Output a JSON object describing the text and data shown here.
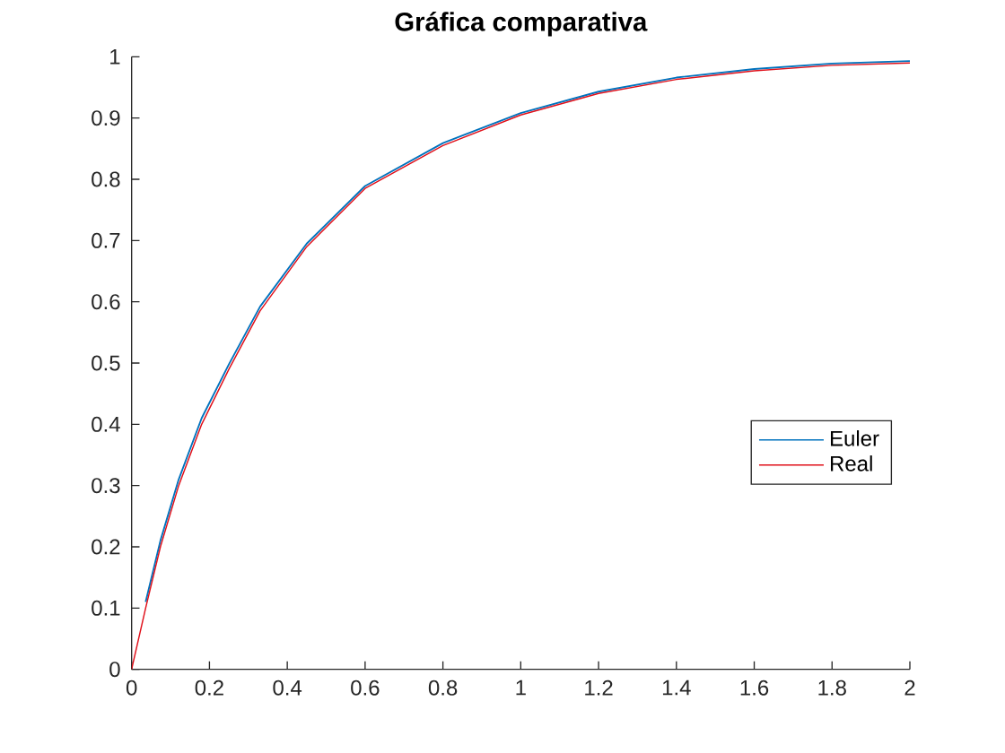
{
  "chart_data": {
    "type": "line",
    "title": "Gráfica comparativa",
    "x": [
      0,
      0.036,
      0.074,
      0.121,
      0.18,
      0.25,
      0.33,
      0.45,
      0.6,
      0.8,
      1,
      1.2,
      1.4,
      1.6,
      1.8,
      2
    ],
    "series": [
      {
        "name": "Euler",
        "color": "#0072bd",
        "values": [
          null,
          0.11,
          0.21,
          0.31,
          0.41,
          0.498,
          0.592,
          0.695,
          0.789,
          0.859,
          0.908,
          0.943,
          0.966,
          0.98,
          0.989,
          0.993
        ]
      },
      {
        "name": "Real",
        "color": "#e0101a",
        "values": [
          0,
          0.1,
          0.2,
          0.3,
          0.4,
          0.49,
          0.585,
          0.69,
          0.785,
          0.855,
          0.905,
          0.94,
          0.963,
          0.977,
          0.986,
          0.99
        ]
      }
    ],
    "xlim": [
      0,
      2
    ],
    "ylim": [
      0,
      1
    ],
    "xticks": [
      0,
      0.2,
      0.4,
      0.6,
      0.8,
      1,
      1.2,
      1.4,
      1.6,
      1.8,
      2
    ],
    "yticks": [
      0,
      0.1,
      0.2,
      0.3,
      0.4,
      0.5,
      0.6,
      0.7,
      0.8,
      0.9,
      1
    ],
    "legend": "right",
    "line_style": "solid"
  }
}
